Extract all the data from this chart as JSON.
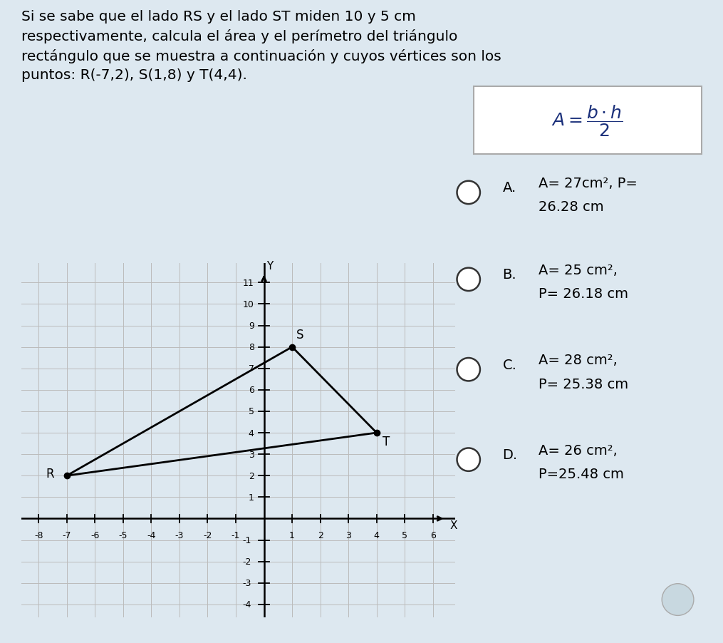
{
  "title_text": "Si se sabe que el lado RS y el lado ST miden 10 y 5 cm\nrespectivamente, calcula el área y el perímetro del triángulo\nrectángulo que se muestra a continuación y cuyos vértices son los\npuntos: R(-7,2), S(1,8) y T(4,4).",
  "background_color": "#dde8f0",
  "graph_bg": "#e8eef2",
  "formula_box_bg": "#ffffff",
  "vertices": {
    "R": [
      -7,
      2
    ],
    "S": [
      1,
      8
    ],
    "T": [
      4,
      4
    ]
  },
  "xmin": -8,
  "xmax": 6,
  "ymin": -4,
  "ymax": 11,
  "options": [
    {
      "letter": "A.",
      "line1": "A= 27cm², P=",
      "line2": "26.28 cm"
    },
    {
      "letter": "B.",
      "line1": "A= 25 cm²,",
      "line2": "P= 26.18 cm"
    },
    {
      "letter": "C.",
      "line1": "A= 28 cm²,",
      "line2": "P= 25.38 cm"
    },
    {
      "letter": "D.",
      "line1": "A= 26 cm²,",
      "line2": "P=25.48 cm"
    }
  ],
  "triangle_color": "#000000",
  "axis_color": "#000000",
  "grid_color": "#bbbbbb",
  "dot_color": "#000000",
  "title_fontsize": 14.5,
  "option_fontsize": 14,
  "formula_fontsize": 18,
  "tick_fontsize": 9
}
